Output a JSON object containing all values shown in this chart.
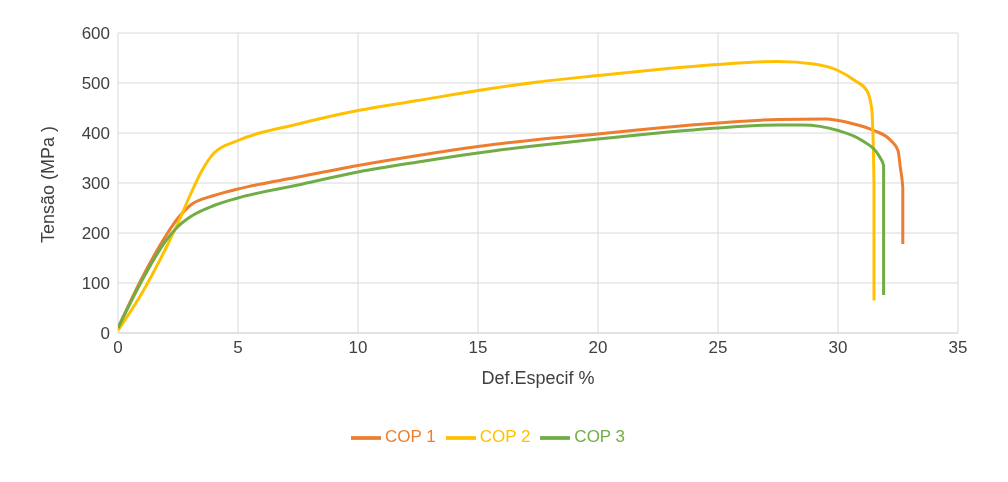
{
  "chart_data": {
    "type": "line",
    "xlabel": "Def.Especif %",
    "ylabel": "Tensão (MPa )",
    "xlim": [
      0,
      35
    ],
    "xticks": [
      0,
      5,
      10,
      15,
      20,
      25,
      30,
      35
    ],
    "ylim": [
      0,
      600
    ],
    "yticks": [
      0,
      100,
      200,
      300,
      400,
      500,
      600
    ],
    "grid": true,
    "legend": "bottom",
    "marker": "none",
    "line_style": "solid",
    "series": [
      {
        "name": "COP 1",
        "color": "#ed7d31",
        "x": [
          0,
          1,
          2,
          2.5,
          3,
          4,
          5,
          7.5,
          10,
          12.5,
          15,
          17.5,
          20,
          22.5,
          25,
          27.5,
          29.5,
          30.5,
          31.5,
          32.2,
          32.5,
          32.6,
          32.7,
          32.7
        ],
        "values": [
          10,
          110,
          195,
          230,
          255,
          275,
          288,
          312,
          335,
          355,
          373,
          387,
          398,
          410,
          420,
          427,
          428,
          420,
          405,
          385,
          365,
          330,
          290,
          178
        ]
      },
      {
        "name": "COP 2",
        "color": "#ffc000",
        "x": [
          0,
          1,
          2,
          2.5,
          3,
          3.5,
          4,
          5,
          7.5,
          10,
          12.5,
          15,
          17.5,
          20,
          22.5,
          25,
          27.5,
          29,
          30,
          30.7,
          31.2,
          31.4,
          31.5,
          31.5
        ],
        "values": [
          5,
          80,
          170,
          220,
          275,
          325,
          360,
          385,
          418,
          445,
          465,
          485,
          502,
          515,
          527,
          537,
          543,
          538,
          525,
          505,
          485,
          450,
          300,
          65
        ]
      },
      {
        "name": "COP 3",
        "color": "#70ad47",
        "x": [
          0,
          1,
          2,
          2.5,
          3,
          4,
          5,
          7.5,
          10,
          12.5,
          15,
          17.5,
          20,
          22.5,
          25,
          27.5,
          28.5,
          30,
          31,
          31.7,
          31.9,
          31.9
        ],
        "values": [
          10,
          105,
          185,
          213,
          232,
          255,
          270,
          296,
          322,
          342,
          360,
          375,
          388,
          400,
          410,
          416,
          416,
          405,
          385,
          355,
          335,
          76
        ]
      }
    ]
  }
}
